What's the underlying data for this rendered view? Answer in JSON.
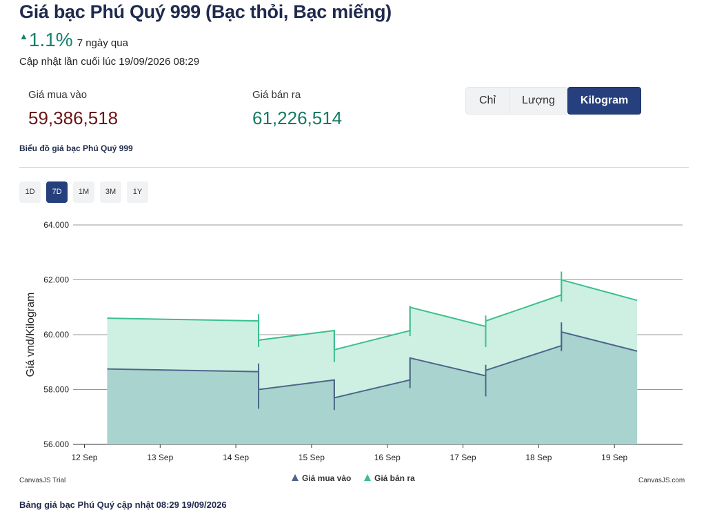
{
  "header": {
    "title": "Giá bạc Phú Quý 999 (Bạc thỏi, Bạc miếng)",
    "change_arrow": "▲",
    "change_value": "1.1%",
    "change_period": "7 ngày qua",
    "updated": "Cập nhật lần cuối lúc 19/09/2026 08:29"
  },
  "prices": {
    "buy_label": "Giá mua vào",
    "buy_value": "59,386,518",
    "sell_label": "Giá bán ra",
    "sell_value": "61,226,514"
  },
  "unit_tabs": [
    {
      "label": "Chỉ",
      "active": false
    },
    {
      "label": "Lượng",
      "active": false
    },
    {
      "label": "Kilogram",
      "active": true
    }
  ],
  "chart_heading": "Biểu đồ giá bạc Phú Quý 999",
  "range_tabs": [
    {
      "label": "1D",
      "active": false
    },
    {
      "label": "7D",
      "active": true
    },
    {
      "label": "1M",
      "active": false
    },
    {
      "label": "3M",
      "active": false
    },
    {
      "label": "1Y",
      "active": false
    }
  ],
  "credits": {
    "left": "CanvasJS Trial",
    "right": "CanvasJS.com"
  },
  "footer": "Bảng giá bạc Phú Quý cập nhật 08:29 19/09/2026",
  "colors": {
    "buy_line": "#4a6789",
    "buy_fill": "#a9d3ce",
    "sell_line": "#3cbf8e",
    "sell_fill": "#cdf0e3"
  },
  "chart_data": {
    "type": "area",
    "ylabel": "Giá vnd/Kilogram",
    "ylim": [
      56000,
      64000
    ],
    "y_ticks": [
      "56.000",
      "58.000",
      "60.000",
      "62.000",
      "64.000"
    ],
    "y_tick_values": [
      56000,
      58000,
      60000,
      62000,
      64000
    ],
    "x_ticks": [
      "12 Sep",
      "13 Sep",
      "14 Sep",
      "15 Sep",
      "16 Sep",
      "17 Sep",
      "18 Sep",
      "19 Sep"
    ],
    "xlim": [
      11.85,
      19.9
    ],
    "grid": true,
    "legend": "bottom-center",
    "series": [
      {
        "name": "Giá mua vào",
        "color": "#4a6789",
        "fill": "#a9d3ce",
        "points": [
          {
            "x": 12.3,
            "y": 58750
          },
          {
            "x": 14.3,
            "y": 58650,
            "lo": 57300,
            "hi": 58950
          },
          {
            "x": 14.3,
            "y": 58000
          },
          {
            "x": 15.3,
            "y": 58350,
            "lo": 57250,
            "hi": 58350
          },
          {
            "x": 15.3,
            "y": 57700
          },
          {
            "x": 16.3,
            "y": 58350,
            "lo": 58050,
            "hi": 59150
          },
          {
            "x": 16.3,
            "y": 59150
          },
          {
            "x": 17.3,
            "y": 58500,
            "lo": 57750,
            "hi": 58900
          },
          {
            "x": 17.3,
            "y": 58700
          },
          {
            "x": 18.3,
            "y": 59600,
            "lo": 59400,
            "hi": 60450
          },
          {
            "x": 18.3,
            "y": 60100
          },
          {
            "x": 19.3,
            "y": 59400
          }
        ]
      },
      {
        "name": "Giá bán ra",
        "color": "#3cbf8e",
        "fill": "#cdf0e3",
        "points": [
          {
            "x": 12.3,
            "y": 60600
          },
          {
            "x": 14.3,
            "y": 60500,
            "lo": 59550,
            "hi": 60750
          },
          {
            "x": 14.3,
            "y": 59800
          },
          {
            "x": 15.3,
            "y": 60150,
            "lo": 59000,
            "hi": 60150
          },
          {
            "x": 15.3,
            "y": 59450
          },
          {
            "x": 16.3,
            "y": 60150,
            "lo": 59950,
            "hi": 61050
          },
          {
            "x": 16.3,
            "y": 61000
          },
          {
            "x": 17.3,
            "y": 60300,
            "lo": 59550,
            "hi": 60700
          },
          {
            "x": 17.3,
            "y": 60500
          },
          {
            "x": 18.3,
            "y": 61450,
            "lo": 61200,
            "hi": 62300
          },
          {
            "x": 18.3,
            "y": 62000
          },
          {
            "x": 19.3,
            "y": 61250
          }
        ]
      }
    ]
  }
}
